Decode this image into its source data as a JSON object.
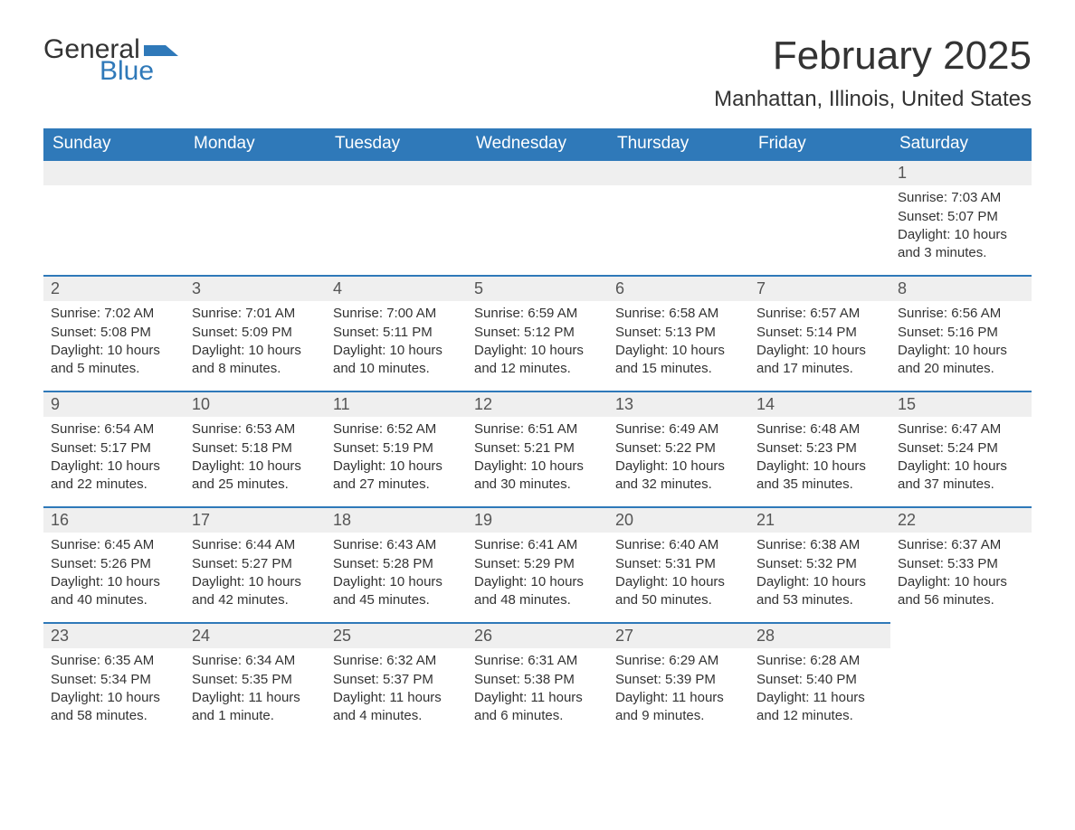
{
  "logo": {
    "text_general": "General",
    "text_blue": "Blue",
    "shape_color": "#2f79b9"
  },
  "header": {
    "month_title": "February 2025",
    "location": "Manhattan, Illinois, United States"
  },
  "colors": {
    "header_bg": "#2f79b9",
    "header_text": "#ffffff",
    "daynum_bg": "#efefef",
    "daynum_border": "#2f79b9",
    "body_text": "#333333",
    "page_bg": "#ffffff"
  },
  "typography": {
    "title_fontsize_pt": 33,
    "location_fontsize_pt": 18,
    "weekday_fontsize_pt": 14,
    "daynum_fontsize_pt": 14,
    "body_fontsize_pt": 11
  },
  "calendar": {
    "type": "table",
    "columns": [
      "Sunday",
      "Monday",
      "Tuesday",
      "Wednesday",
      "Thursday",
      "Friday",
      "Saturday"
    ],
    "weeks": [
      [
        null,
        null,
        null,
        null,
        null,
        null,
        {
          "day": "1",
          "sunrise": "Sunrise: 7:03 AM",
          "sunset": "Sunset: 5:07 PM",
          "daylight": "Daylight: 10 hours and 3 minutes."
        }
      ],
      [
        {
          "day": "2",
          "sunrise": "Sunrise: 7:02 AM",
          "sunset": "Sunset: 5:08 PM",
          "daylight": "Daylight: 10 hours and 5 minutes."
        },
        {
          "day": "3",
          "sunrise": "Sunrise: 7:01 AM",
          "sunset": "Sunset: 5:09 PM",
          "daylight": "Daylight: 10 hours and 8 minutes."
        },
        {
          "day": "4",
          "sunrise": "Sunrise: 7:00 AM",
          "sunset": "Sunset: 5:11 PM",
          "daylight": "Daylight: 10 hours and 10 minutes."
        },
        {
          "day": "5",
          "sunrise": "Sunrise: 6:59 AM",
          "sunset": "Sunset: 5:12 PM",
          "daylight": "Daylight: 10 hours and 12 minutes."
        },
        {
          "day": "6",
          "sunrise": "Sunrise: 6:58 AM",
          "sunset": "Sunset: 5:13 PM",
          "daylight": "Daylight: 10 hours and 15 minutes."
        },
        {
          "day": "7",
          "sunrise": "Sunrise: 6:57 AM",
          "sunset": "Sunset: 5:14 PM",
          "daylight": "Daylight: 10 hours and 17 minutes."
        },
        {
          "day": "8",
          "sunrise": "Sunrise: 6:56 AM",
          "sunset": "Sunset: 5:16 PM",
          "daylight": "Daylight: 10 hours and 20 minutes."
        }
      ],
      [
        {
          "day": "9",
          "sunrise": "Sunrise: 6:54 AM",
          "sunset": "Sunset: 5:17 PM",
          "daylight": "Daylight: 10 hours and 22 minutes."
        },
        {
          "day": "10",
          "sunrise": "Sunrise: 6:53 AM",
          "sunset": "Sunset: 5:18 PM",
          "daylight": "Daylight: 10 hours and 25 minutes."
        },
        {
          "day": "11",
          "sunrise": "Sunrise: 6:52 AM",
          "sunset": "Sunset: 5:19 PM",
          "daylight": "Daylight: 10 hours and 27 minutes."
        },
        {
          "day": "12",
          "sunrise": "Sunrise: 6:51 AM",
          "sunset": "Sunset: 5:21 PM",
          "daylight": "Daylight: 10 hours and 30 minutes."
        },
        {
          "day": "13",
          "sunrise": "Sunrise: 6:49 AM",
          "sunset": "Sunset: 5:22 PM",
          "daylight": "Daylight: 10 hours and 32 minutes."
        },
        {
          "day": "14",
          "sunrise": "Sunrise: 6:48 AM",
          "sunset": "Sunset: 5:23 PM",
          "daylight": "Daylight: 10 hours and 35 minutes."
        },
        {
          "day": "15",
          "sunrise": "Sunrise: 6:47 AM",
          "sunset": "Sunset: 5:24 PM",
          "daylight": "Daylight: 10 hours and 37 minutes."
        }
      ],
      [
        {
          "day": "16",
          "sunrise": "Sunrise: 6:45 AM",
          "sunset": "Sunset: 5:26 PM",
          "daylight": "Daylight: 10 hours and 40 minutes."
        },
        {
          "day": "17",
          "sunrise": "Sunrise: 6:44 AM",
          "sunset": "Sunset: 5:27 PM",
          "daylight": "Daylight: 10 hours and 42 minutes."
        },
        {
          "day": "18",
          "sunrise": "Sunrise: 6:43 AM",
          "sunset": "Sunset: 5:28 PM",
          "daylight": "Daylight: 10 hours and 45 minutes."
        },
        {
          "day": "19",
          "sunrise": "Sunrise: 6:41 AM",
          "sunset": "Sunset: 5:29 PM",
          "daylight": "Daylight: 10 hours and 48 minutes."
        },
        {
          "day": "20",
          "sunrise": "Sunrise: 6:40 AM",
          "sunset": "Sunset: 5:31 PM",
          "daylight": "Daylight: 10 hours and 50 minutes."
        },
        {
          "day": "21",
          "sunrise": "Sunrise: 6:38 AM",
          "sunset": "Sunset: 5:32 PM",
          "daylight": "Daylight: 10 hours and 53 minutes."
        },
        {
          "day": "22",
          "sunrise": "Sunrise: 6:37 AM",
          "sunset": "Sunset: 5:33 PM",
          "daylight": "Daylight: 10 hours and 56 minutes."
        }
      ],
      [
        {
          "day": "23",
          "sunrise": "Sunrise: 6:35 AM",
          "sunset": "Sunset: 5:34 PM",
          "daylight": "Daylight: 10 hours and 58 minutes."
        },
        {
          "day": "24",
          "sunrise": "Sunrise: 6:34 AM",
          "sunset": "Sunset: 5:35 PM",
          "daylight": "Daylight: 11 hours and 1 minute."
        },
        {
          "day": "25",
          "sunrise": "Sunrise: 6:32 AM",
          "sunset": "Sunset: 5:37 PM",
          "daylight": "Daylight: 11 hours and 4 minutes."
        },
        {
          "day": "26",
          "sunrise": "Sunrise: 6:31 AM",
          "sunset": "Sunset: 5:38 PM",
          "daylight": "Daylight: 11 hours and 6 minutes."
        },
        {
          "day": "27",
          "sunrise": "Sunrise: 6:29 AM",
          "sunset": "Sunset: 5:39 PM",
          "daylight": "Daylight: 11 hours and 9 minutes."
        },
        {
          "day": "28",
          "sunrise": "Sunrise: 6:28 AM",
          "sunset": "Sunset: 5:40 PM",
          "daylight": "Daylight: 11 hours and 12 minutes."
        },
        null
      ]
    ]
  }
}
